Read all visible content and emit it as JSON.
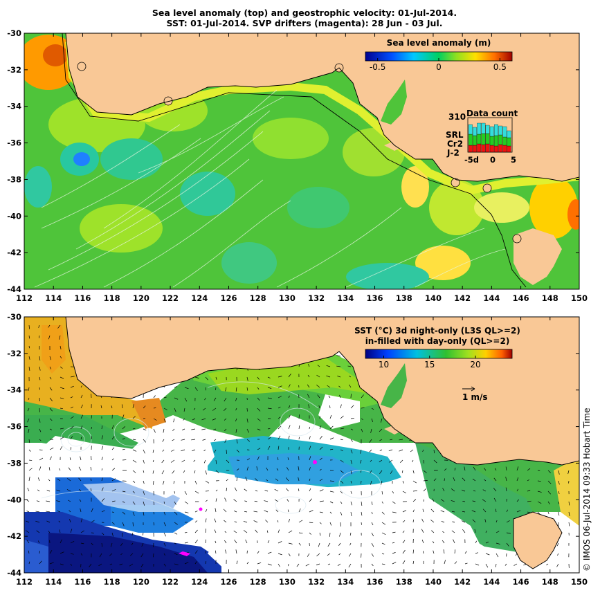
{
  "header": {
    "line1": "Sea level anomaly (top) and geostrophic velocity: 01-Jul-2014.",
    "line2": "SST: 01-Jul-2014. SVP drifters (magenta): 28 Jun - 03 Jul."
  },
  "axes": {
    "lon_ticks": [
      "112",
      "114",
      "116",
      "118",
      "120",
      "122",
      "124",
      "126",
      "128",
      "130",
      "132",
      "134",
      "136",
      "138",
      "140",
      "142",
      "144",
      "146",
      "148",
      "150"
    ],
    "lat_ticks": [
      "-30",
      "-32",
      "-34",
      "-36",
      "-38",
      "-40",
      "-42",
      "-44"
    ],
    "lon_range": [
      112,
      150
    ],
    "lat_range": [
      -44,
      -30
    ]
  },
  "top_panel": {
    "colorbar_title": "Sea level anomaly (m)",
    "colorbar_ticks": [
      "-0.5",
      "0",
      "0.5"
    ],
    "colorbar_range": [
      -0.6,
      0.6
    ],
    "data_count": {
      "title": "Data count",
      "max_label": "310",
      "series": [
        {
          "name": "SRL",
          "color": "#33dddd"
        },
        {
          "name": "Cr2",
          "color": "#22cc22"
        },
        {
          "name": "J-2",
          "color": "#ee1111"
        }
      ],
      "x_ticks": [
        "-5d",
        "0",
        "5"
      ]
    }
  },
  "bottom_panel": {
    "colorbar_title_1": "SST (°C)  3d night-only (L3S QL>=2)",
    "colorbar_title_2": "in-filled with day-only (QL>=2)",
    "colorbar_ticks": [
      "10",
      "15",
      "20"
    ],
    "colorbar_range": [
      8,
      24
    ],
    "vector_scale_label": "1 m/s"
  },
  "credit": "© IMOS 06-Jul-2014 09:33 Hobart Time",
  "colors": {
    "land": "#f9c896",
    "ocean_top": "#4fc43a",
    "ocean_bottom": "#47b548",
    "missing": "#ffffff",
    "drifter": "#ff00ff"
  }
}
